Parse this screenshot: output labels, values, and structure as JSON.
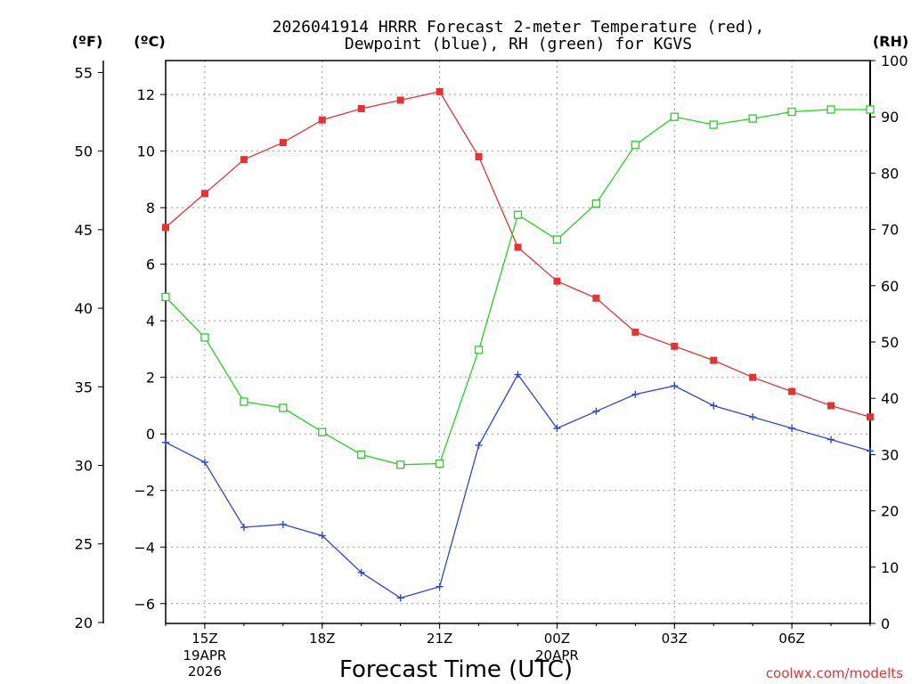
{
  "chart_data": {
    "type": "line",
    "title_line1": "2026041914 HRRR Forecast 2-meter Temperature (red),",
    "title_line2": "Dewpoint (blue), RH (green) for KGVS",
    "xlabel": "Forecast Time (UTC)",
    "watermark": "coolwx.com/modelts",
    "axis_unit_labels": {
      "fahrenheit": "(ºF)",
      "celsius": "(ºC)",
      "rh": "(RH)"
    },
    "x": [
      14,
      15,
      16,
      17,
      18,
      19,
      20,
      21,
      22,
      23,
      24,
      25,
      26,
      27,
      28,
      29,
      30,
      31,
      32
    ],
    "xlim": [
      14,
      32
    ],
    "x_ticks": [
      {
        "x": 15,
        "label": "15Z",
        "sub1": "19APR",
        "sub2": "2026"
      },
      {
        "x": 18,
        "label": "18Z",
        "sub1": "",
        "sub2": ""
      },
      {
        "x": 21,
        "label": "21Z",
        "sub1": "",
        "sub2": ""
      },
      {
        "x": 24,
        "label": "00Z",
        "sub1": "20APR",
        "sub2": ""
      },
      {
        "x": 27,
        "label": "03Z",
        "sub1": "",
        "sub2": ""
      },
      {
        "x": 30,
        "label": "06Z",
        "sub1": "",
        "sub2": ""
      }
    ],
    "celsius_axis": {
      "ylim": [
        -6.7,
        13.2
      ],
      "ticks": [
        -6,
        -4,
        -2,
        0,
        2,
        4,
        6,
        8,
        10,
        12
      ]
    },
    "fahrenheit_ticks": [
      20,
      25,
      30,
      35,
      40,
      45,
      50,
      55
    ],
    "rh_axis": {
      "ylim": [
        0,
        100
      ],
      "ticks": [
        0,
        10,
        20,
        30,
        40,
        50,
        60,
        70,
        80,
        90,
        100
      ]
    },
    "series": [
      {
        "name": "Temperature",
        "units": "C",
        "color": "#e83232",
        "marker": "filled-square",
        "values": [
          7.3,
          8.5,
          9.7,
          10.3,
          11.1,
          11.5,
          11.8,
          12.1,
          9.8,
          6.6,
          5.4,
          4.8,
          3.6,
          3.1,
          2.6,
          2.0,
          1.5,
          1.0,
          0.6
        ]
      },
      {
        "name": "Dewpoint",
        "units": "C",
        "color": "#2d45e6",
        "marker": "plus",
        "values": [
          -0.3,
          -1.0,
          -3.3,
          -3.2,
          -3.6,
          -4.9,
          -5.8,
          -5.4,
          -0.4,
          2.1,
          0.2,
          0.8,
          1.4,
          1.7,
          1.0,
          0.6,
          0.2,
          -0.2,
          -0.6
        ]
      },
      {
        "name": "RH",
        "units": "%",
        "color": "#22d322",
        "marker": "open-square",
        "values": [
          58.0,
          50.8,
          39.4,
          38.3,
          34.0,
          30.0,
          28.2,
          28.4,
          48.6,
          72.6,
          68.2,
          74.6,
          85.0,
          90.0,
          88.6,
          89.7,
          90.9,
          91.3,
          91.3
        ]
      }
    ]
  }
}
